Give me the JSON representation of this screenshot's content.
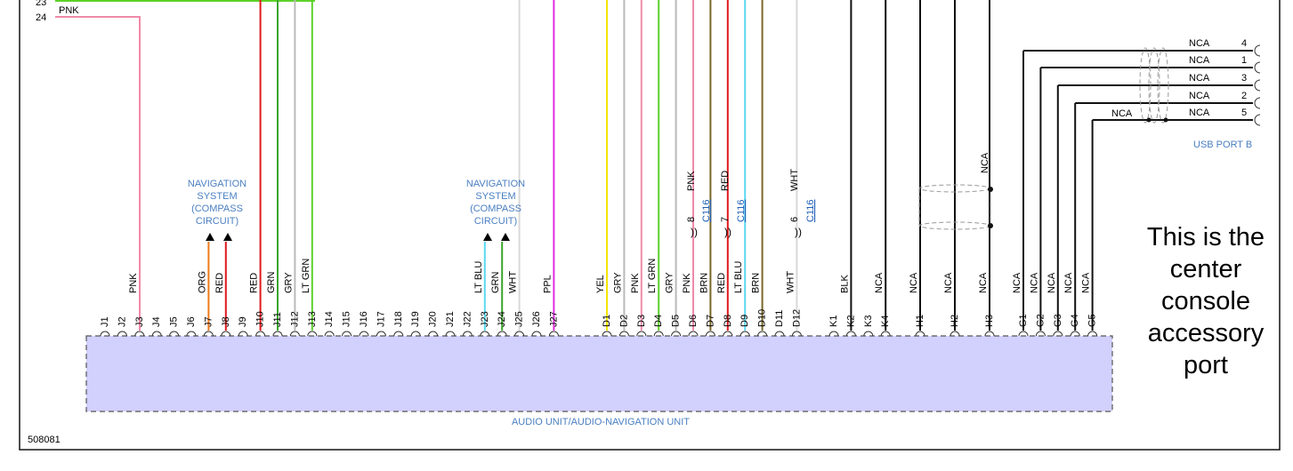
{
  "colors": {
    "PNK": "#f08aa8",
    "RED": "#e0191c",
    "GRN": "#3aa62c",
    "LTGRN": "#5cd12a",
    "GRY": "#b9b9b9",
    "WHT": "#d8d8d8",
    "PPL": "#e02be0",
    "YEL": "#f2e600",
    "BRN": "#7a6628",
    "LTBLU": "#5ad8f2",
    "ORG": "#ef7a1a",
    "BLK": "#111111",
    "NCA": "#111111",
    "connector_fill": "#d2d0fc",
    "label_blue": "#4a7fc1"
  },
  "top_wire": {
    "left_num1": "23",
    "left_num2": "24",
    "color": "PNK"
  },
  "pins": [
    {
      "id": "J1"
    },
    {
      "id": "J2"
    },
    {
      "id": "J3",
      "color": "PNK"
    },
    {
      "id": "J4"
    },
    {
      "id": "J5"
    },
    {
      "id": "J6"
    },
    {
      "id": "J7",
      "color": "ORG"
    },
    {
      "id": "J8",
      "color": "RED"
    },
    {
      "id": "J9"
    },
    {
      "id": "J10",
      "color": "RED"
    },
    {
      "id": "J11",
      "color": "GRN"
    },
    {
      "id": "J12",
      "color": "GRY"
    },
    {
      "id": "J13",
      "color": "LT GRN"
    },
    {
      "id": "J14"
    },
    {
      "id": "J15"
    },
    {
      "id": "J16"
    },
    {
      "id": "J17"
    },
    {
      "id": "J18"
    },
    {
      "id": "J19"
    },
    {
      "id": "J20"
    },
    {
      "id": "J21"
    },
    {
      "id": "J22"
    },
    {
      "id": "J23",
      "color": "LT BLU"
    },
    {
      "id": "J24",
      "color": "GRN"
    },
    {
      "id": "J25",
      "color": "WHT"
    },
    {
      "id": "J26"
    },
    {
      "id": "J27",
      "color": "PPL"
    },
    {
      "id": "D1",
      "color": "YEL"
    },
    {
      "id": "D2",
      "color": "GRY"
    },
    {
      "id": "D3",
      "color": "PNK"
    },
    {
      "id": "D4",
      "color": "LT GRN"
    },
    {
      "id": "D5",
      "color": "GRY"
    },
    {
      "id": "D6",
      "color": "PNK"
    },
    {
      "id": "D7",
      "color": "BRN"
    },
    {
      "id": "D8",
      "color": "RED"
    },
    {
      "id": "D9",
      "color": "LT BLU"
    },
    {
      "id": "D10",
      "color": "BRN"
    },
    {
      "id": "D11"
    },
    {
      "id": "D12",
      "color": "WHT"
    },
    {
      "id": "K1"
    },
    {
      "id": "K2",
      "color": "BLK"
    },
    {
      "id": "K3"
    },
    {
      "id": "K4",
      "color": "NCA"
    },
    {
      "id": "H1",
      "color": "NCA"
    },
    {
      "id": "H2",
      "color": "NCA"
    },
    {
      "id": "H3",
      "color": "NCA"
    },
    {
      "id": "G1",
      "color": "NCA"
    },
    {
      "id": "G2",
      "color": "NCA"
    },
    {
      "id": "G3",
      "color": "NCA"
    },
    {
      "id": "G4",
      "color": "NCA"
    },
    {
      "id": "G5",
      "color": "NCA"
    }
  ],
  "nav_label_1": [
    "NAVIGATION",
    "SYSTEM",
    "(COMPASS",
    "CIRCUIT)"
  ],
  "nav_label_2": [
    "NAVIGATION",
    "SYSTEM",
    "(COMPASS",
    "CIRCUIT)"
  ],
  "upper_wire_labels": {
    "d6": "PNK",
    "d8": "RED",
    "d12": "WHT",
    "h3": "NCA"
  },
  "inline_connectors": [
    {
      "pin": "8",
      "ref": "C116"
    },
    {
      "pin": "7",
      "ref": "C116"
    },
    {
      "pin": "6",
      "ref": "C116"
    }
  ],
  "usb_port": {
    "title": "USB PORT B",
    "rows": [
      {
        "label": "NCA",
        "pin": "4"
      },
      {
        "label": "NCA",
        "pin": "1"
      },
      {
        "label": "NCA",
        "pin": "3"
      },
      {
        "label": "NCA",
        "pin": "2"
      },
      {
        "label": "NCA",
        "pin": "5"
      }
    ],
    "g5_label": "NCA"
  },
  "connector_title": "AUDIO UNIT/AUDIO-NAVIGATION UNIT",
  "diagram_id": "508081",
  "note_lines": [
    "This is the",
    "center",
    "console",
    "accessory",
    "port"
  ]
}
